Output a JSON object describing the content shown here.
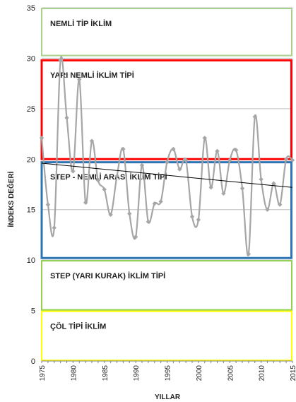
{
  "chart_data": {
    "type": "line",
    "xlabel": "YILLAR",
    "ylabel": "İNDEKS DEĞERİ",
    "xlim": [
      1975,
      2015
    ],
    "ylim": [
      0,
      35
    ],
    "x_ticks": [
      "1975",
      "1980",
      "1985",
      "1990",
      "1995",
      "2000",
      "2005",
      "2010",
      "2015"
    ],
    "y_ticks": [
      "0",
      "5",
      "10",
      "15",
      "20",
      "25",
      "30",
      "35"
    ],
    "grid": "horizontal",
    "series": [
      {
        "color": "#a6a6a6",
        "marker": "diamond",
        "x": [
          1975,
          1976,
          1977,
          1978,
          1979,
          1980,
          1981,
          1982,
          1983,
          1984,
          1985,
          1986,
          1987,
          1988,
          1989,
          1990,
          1991,
          1992,
          1993,
          1994,
          1995,
          1996,
          1997,
          1998,
          1999,
          2000,
          2001,
          2002,
          2003,
          2004,
          2005,
          2006,
          2007,
          2008,
          2009,
          2010,
          2011,
          2012,
          2013,
          2014,
          2015
        ],
        "y": [
          22.1,
          15.5,
          13.2,
          29.8,
          24.1,
          18.8,
          27.9,
          15.7,
          21.8,
          17.9,
          17.0,
          14.5,
          18.3,
          21.0,
          14.6,
          12.3,
          19.4,
          13.8,
          15.6,
          15.8,
          19.7,
          21.0,
          19.0,
          19.9,
          14.3,
          14.0,
          22.1,
          17.2,
          20.8,
          16.6,
          19.9,
          20.9,
          17.1,
          10.6,
          24.2,
          18.0,
          15.0,
          17.6,
          15.5,
          20.0,
          19.9
        ]
      }
    ],
    "trendline": {
      "color": "#000000",
      "start": [
        1975,
        19.6
      ],
      "end": [
        2015,
        17.2
      ]
    },
    "zones": [
      {
        "label": "NEMLİ TİP İKLİM",
        "y_from": 30.2,
        "y_to": 35,
        "color": "#a9d18e"
      },
      {
        "label": "YARI NEMLİ İKLİM TİPİ",
        "y_from": 19.9,
        "y_to": 29.9,
        "color": "#ff0000"
      },
      {
        "label": "STEP - NEMLİ ARASI İKLİM TİPİ",
        "y_from": 10.1,
        "y_to": 19.8,
        "color": "#2e75b6"
      },
      {
        "label": "STEP (YARI KURAK) İKLİM TİPİ",
        "y_from": 5.0,
        "y_to": 10.0,
        "color": "#92d050"
      },
      {
        "label": "ÇÖL TİPİ İKLİM",
        "y_from": 0,
        "y_to": 5.0,
        "color": "#ffff00"
      }
    ]
  }
}
